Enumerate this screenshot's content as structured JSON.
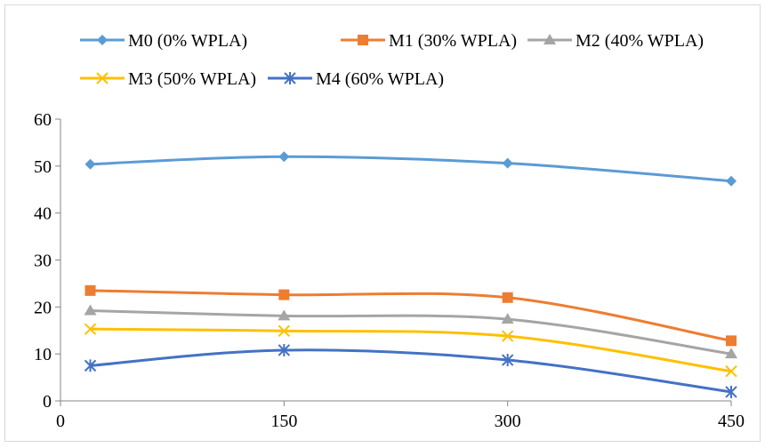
{
  "chart_data": {
    "type": "line",
    "title": "",
    "xlabel": "",
    "ylabel": "",
    "x": [
      20,
      150,
      300,
      450
    ],
    "xlim": [
      0,
      450
    ],
    "ylim": [
      0,
      60
    ],
    "x_ticks": [
      "0",
      "150",
      "300",
      "450"
    ],
    "y_ticks": [
      "0",
      "10",
      "20",
      "30",
      "40",
      "50",
      "60"
    ],
    "grid": false,
    "smooth": true,
    "legend_position": "top",
    "series": [
      {
        "name": "M0 (0% WPLA)",
        "color": "#5B9BD5",
        "marker": "diamond",
        "values": [
          50.4,
          52.0,
          50.6,
          46.8
        ]
      },
      {
        "name": "M1 (30% WPLA)",
        "color": "#ED7D31",
        "marker": "square",
        "values": [
          23.5,
          22.6,
          22.0,
          12.8
        ]
      },
      {
        "name": "M2 (40% WPLA)",
        "color": "#A5A5A5",
        "marker": "triangle",
        "values": [
          19.2,
          18.1,
          17.4,
          10.0
        ]
      },
      {
        "name": "M3 (50% WPLA)",
        "color": "#FFC000",
        "marker": "x",
        "values": [
          15.3,
          14.9,
          13.8,
          6.3
        ]
      },
      {
        "name": "M4 (60% WPLA)",
        "color": "#4472C4",
        "marker": "star",
        "values": [
          7.5,
          10.8,
          8.7,
          1.9
        ]
      }
    ]
  }
}
